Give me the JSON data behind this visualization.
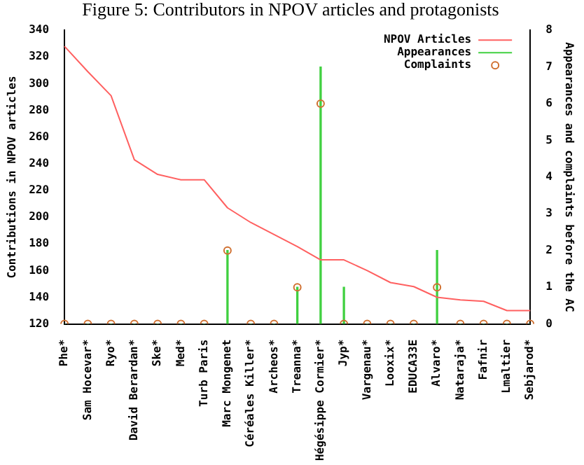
{
  "chart_data": {
    "type": "line",
    "title": "Figure 5: Contributors in NPOV articles and protagonists",
    "ylabel": "Contributions in NPOV articles",
    "y2label": "Appearances and complaints before the AC",
    "categories": [
      "Phe*",
      "Sam Hocevar*",
      "Ryo*",
      "David Berardan*",
      "Ske*",
      "Med*",
      "Turb Paris",
      "Marc Mongenet",
      "Céréales Killer*",
      "Archeos*",
      "Treanna*",
      "Hégésippe Cormier*",
      "Jyp*",
      "Vargenau*",
      "Looxix*",
      "EDUCA33E",
      "Alvaro*",
      "Nataraja*",
      "Fafnir",
      "Lmaltier",
      "Sebjarod*"
    ],
    "series": [
      {
        "name": "NPOV Articles",
        "color": "#ff6060",
        "values": [
          328,
          309,
          291,
          243,
          232,
          228,
          228,
          207,
          196,
          187,
          178,
          168,
          168,
          160,
          151,
          148,
          140,
          138,
          137,
          130,
          130
        ]
      },
      {
        "name": "Appearances",
        "type": "bar",
        "axis": "y2",
        "color": "#40d040",
        "values": [
          0,
          0,
          0,
          0,
          0,
          0,
          0,
          2,
          0,
          0,
          1,
          7,
          1,
          0,
          0,
          0,
          2,
          0,
          0,
          0,
          0
        ]
      },
      {
        "name": "Complaints",
        "type": "scatter",
        "axis": "y2",
        "marker": "circle",
        "color": "#d07030",
        "values": [
          0,
          0,
          0,
          0,
          0,
          0,
          0,
          2,
          0,
          0,
          1,
          6,
          0,
          0,
          0,
          0,
          1,
          0,
          0,
          0,
          0
        ]
      }
    ],
    "ylim": [
      120,
      340
    ],
    "yticks": [
      120,
      140,
      160,
      180,
      200,
      220,
      240,
      260,
      280,
      300,
      320,
      340
    ],
    "y2lim": [
      0,
      8
    ],
    "y2ticks": [
      0,
      1,
      2,
      3,
      4,
      5,
      6,
      7,
      8
    ],
    "grid": false,
    "legend": "top right"
  }
}
